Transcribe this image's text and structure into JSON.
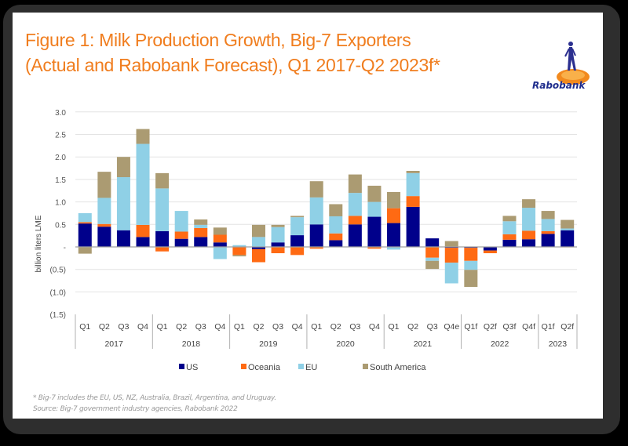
{
  "title_line1": "Figure 1: Milk Production Growth, Big-7 Exporters",
  "title_line2": "(Actual and Rabobank Forecast), Q1 2017-Q2 2023f*",
  "logo_text": "Rabobank",
  "footnote": "* Big-7 includes the EU, US, NZ, Australia, Brazil, Argentina, and Uruguay.",
  "source": "Source: Big-7 government industry agencies, Rabobank 2022",
  "chart_data": {
    "type": "bar",
    "stacked": true,
    "title": "",
    "xlabel": "",
    "ylabel": "billion liters LME",
    "ylim": [
      -1.5,
      3.0
    ],
    "yticks": [
      3.0,
      2.5,
      2.0,
      1.5,
      1.0,
      0.5,
      0,
      -0.5,
      -1.0,
      -1.5
    ],
    "ytick_labels": [
      "3.0",
      "2.5",
      "2.0",
      "1.5",
      "1.0",
      "0.5",
      "-",
      "(0.5)",
      "(1.0)",
      "(1.5)"
    ],
    "grid": true,
    "legend_position": "bottom",
    "categories": [
      "Q1",
      "Q2",
      "Q3",
      "Q4",
      "Q1",
      "Q2",
      "Q3",
      "Q4",
      "Q1",
      "Q2",
      "Q3",
      "Q4",
      "Q1",
      "Q2",
      "Q3",
      "Q4",
      "Q1",
      "Q2",
      "Q3",
      "Q4e",
      "Q1f",
      "Q2f",
      "Q3f",
      "Q4f",
      "Q1f",
      "Q2f"
    ],
    "groups": [
      {
        "label": "2017",
        "count": 4
      },
      {
        "label": "2018",
        "count": 4
      },
      {
        "label": "2019",
        "count": 4
      },
      {
        "label": "2020",
        "count": 4
      },
      {
        "label": "2021",
        "count": 4
      },
      {
        "label": "2022",
        "count": 4
      },
      {
        "label": "2023",
        "count": 2
      }
    ],
    "series": [
      {
        "name": "US",
        "color": "#00008b",
        "values": [
          0.52,
          0.45,
          0.37,
          0.22,
          0.35,
          0.18,
          0.22,
          0.1,
          0.0,
          -0.05,
          0.1,
          0.26,
          0.5,
          0.15,
          0.5,
          0.67,
          0.53,
          0.89,
          0.19,
          -0.02,
          -0.02,
          -0.08,
          0.16,
          0.17,
          0.29,
          0.37
        ]
      },
      {
        "name": "Oceania",
        "color": "#ff6a13",
        "values": [
          0.03,
          0.06,
          0.0,
          0.27,
          -0.1,
          0.16,
          0.2,
          0.17,
          -0.18,
          -0.29,
          -0.14,
          -0.18,
          -0.04,
          0.15,
          0.19,
          -0.04,
          0.33,
          0.24,
          -0.24,
          -0.33,
          -0.29,
          -0.06,
          0.12,
          0.19,
          0.06,
          -0.01
        ]
      },
      {
        "name": "EU",
        "color": "#8fd0e6",
        "values": [
          0.2,
          0.58,
          1.18,
          1.8,
          0.95,
          0.46,
          0.07,
          -0.27,
          0.04,
          0.22,
          0.34,
          0.4,
          0.6,
          0.38,
          0.51,
          0.33,
          -0.06,
          0.51,
          -0.07,
          -0.46,
          -0.2,
          0.0,
          0.29,
          0.51,
          0.27,
          0.04
        ]
      },
      {
        "name": "South America",
        "color": "#ab9b72",
        "values": [
          -0.15,
          0.58,
          0.45,
          0.33,
          0.34,
          0.0,
          0.12,
          0.16,
          -0.03,
          0.27,
          0.05,
          0.03,
          0.36,
          0.27,
          0.41,
          0.36,
          0.36,
          0.05,
          -0.18,
          0.13,
          -0.38,
          0.0,
          0.12,
          0.19,
          0.18,
          0.19
        ]
      }
    ]
  }
}
